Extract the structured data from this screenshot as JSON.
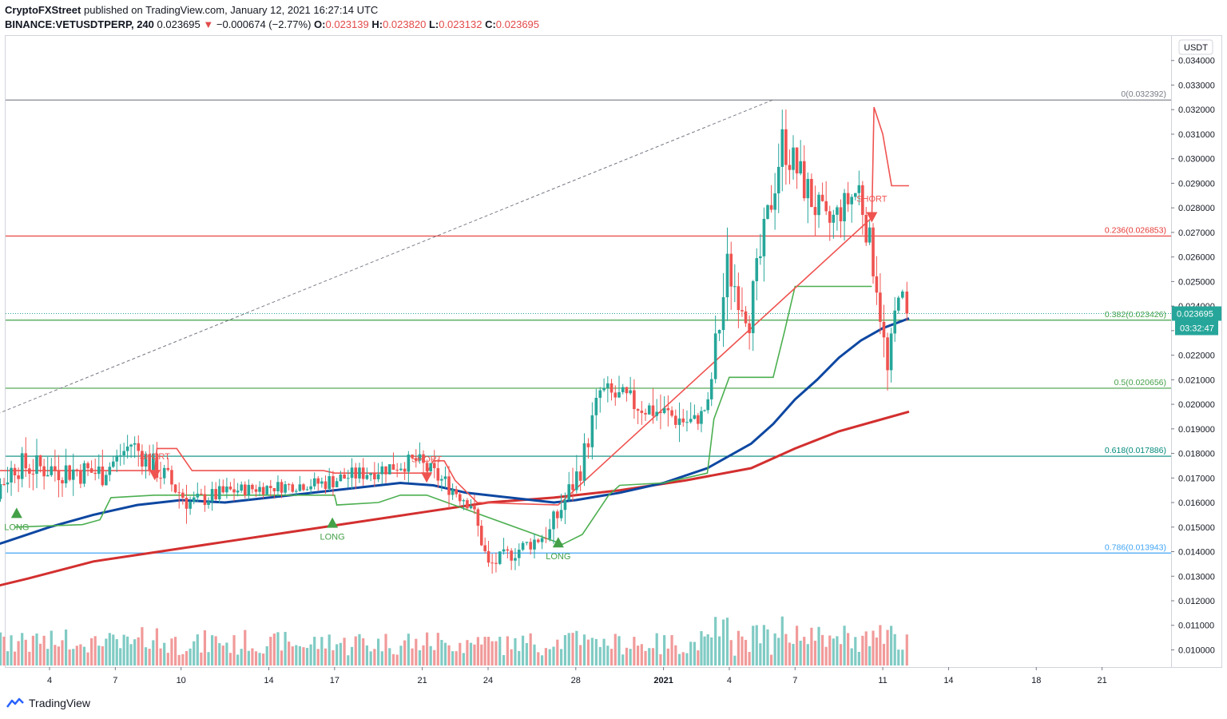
{
  "header": {
    "publisher": "CryptoFXStreet",
    "published_text": "published on TradingView.com, January 12, 2021 16:27:14 UTC",
    "symbol": "BINANCE:VETUSDTPERP",
    "interval": "240",
    "last": "0.023695",
    "change": "−0.000674 (−2.77%)",
    "o_label": "O:",
    "o": "0.023139",
    "h_label": "H:",
    "h": "0.023820",
    "l_label": "L:",
    "l": "0.023132",
    "c_label": "C:",
    "c": "0.023695"
  },
  "footer": {
    "brand": "TradingView",
    "icon": "tradingview-logo-icon"
  },
  "colors": {
    "up": "#26a69a",
    "down": "#ef5350",
    "ema_fast": "#0d47a1",
    "ema_slow": "#d32f2f",
    "trail": "#4caf50",
    "trail_short": "#ef5350",
    "fib_red": "#e53935",
    "fib_green": "#43a047",
    "fib_teal": "#00897b",
    "fib_blue": "#42a5f5",
    "grid_axis": "#787b86"
  },
  "chart_data": {
    "type": "candlestick",
    "currency_label": "USDT",
    "ylim": [
      0.0093,
      0.035
    ],
    "y_ticks": [
      "0.034000",
      "0.033000",
      "0.032000",
      "0.031000",
      "0.030000",
      "0.029000",
      "0.028000",
      "0.027000",
      "0.026000",
      "0.025000",
      "0.024000",
      "0.023000",
      "0.022000",
      "0.021000",
      "0.020000",
      "0.019000",
      "0.018000",
      "0.017000",
      "0.016000",
      "0.015000",
      "0.014000",
      "0.013000",
      "0.012000",
      "0.011000",
      "0.010000"
    ],
    "x_ticks": [
      {
        "label": "4",
        "d": 3
      },
      {
        "label": "7",
        "d": 6
      },
      {
        "label": "10",
        "d": 9
      },
      {
        "label": "14",
        "d": 13
      },
      {
        "label": "17",
        "d": 16
      },
      {
        "label": "21",
        "d": 20
      },
      {
        "label": "24",
        "d": 23
      },
      {
        "label": "28",
        "d": 27
      },
      {
        "label": "2021",
        "d": 31
      },
      {
        "label": "4",
        "d": 34
      },
      {
        "label": "7",
        "d": 37
      },
      {
        "label": "11",
        "d": 41
      },
      {
        "label": "14",
        "d": 44
      },
      {
        "label": "18",
        "d": 48
      },
      {
        "label": "21",
        "d": 51
      }
    ],
    "fib_levels": [
      {
        "ratio": "0",
        "price": 0.032392,
        "label": "0(0.032392)",
        "color": "#787b86"
      },
      {
        "ratio": "0.236",
        "price": 0.026853,
        "label": "0.236(0.026853)",
        "color": "#e53935"
      },
      {
        "ratio": "0.382",
        "price": 0.023426,
        "label": "0.382(0.023426)",
        "color": "#43a047"
      },
      {
        "ratio": "0.5",
        "price": 0.020656,
        "label": "0.5(0.020656)",
        "color": "#43a047"
      },
      {
        "ratio": "0.618",
        "price": 0.017886,
        "label": "0.618(0.017886)",
        "color": "#00897b"
      },
      {
        "ratio": "0.786",
        "price": 0.013943,
        "label": "0.786(0.013943)",
        "color": "#42a5f5"
      }
    ],
    "last_price": "0.023695",
    "countdown": "03:32:47",
    "signals": [
      {
        "type": "LONG",
        "label": "LONG",
        "d": 1.5,
        "price": 0.0156
      },
      {
        "type": "SHORT",
        "label": "SHORT",
        "d": 7.8,
        "price": 0.0171
      },
      {
        "type": "LONG",
        "label": "LONG",
        "d": 15.9,
        "price": 0.0152
      },
      {
        "type": "SHORT",
        "label": "SHORT",
        "d": 20.2,
        "price": 0.017
      },
      {
        "type": "LONG",
        "label": "LONG",
        "d": 26.2,
        "price": 0.0144
      },
      {
        "type": "SHORT",
        "label": "SHORT",
        "d": 40.5,
        "price": 0.0276
      }
    ],
    "ema_fast": [
      [
        -0.8,
        0.0139
      ],
      [
        1,
        0.0144
      ],
      [
        3,
        0.015
      ],
      [
        5,
        0.0155
      ],
      [
        7,
        0.0159
      ],
      [
        9,
        0.0161
      ],
      [
        11,
        0.016
      ],
      [
        13,
        0.0162
      ],
      [
        15,
        0.0164
      ],
      [
        17,
        0.0166
      ],
      [
        19,
        0.0168
      ],
      [
        20.5,
        0.0167
      ],
      [
        22,
        0.0164
      ],
      [
        24,
        0.0162
      ],
      [
        26,
        0.016
      ],
      [
        27,
        0.0161
      ],
      [
        29,
        0.0164
      ],
      [
        31,
        0.0168
      ],
      [
        33,
        0.0174
      ],
      [
        35,
        0.0184
      ],
      [
        36,
        0.0192
      ],
      [
        37,
        0.0202
      ],
      [
        38,
        0.021
      ],
      [
        39,
        0.0219
      ],
      [
        40,
        0.0226
      ],
      [
        41,
        0.0231
      ],
      [
        42.2,
        0.0235
      ]
    ],
    "ema_slow": [
      [
        -0.8,
        0.0123
      ],
      [
        2,
        0.0129
      ],
      [
        5,
        0.0136
      ],
      [
        8,
        0.014
      ],
      [
        11,
        0.0144
      ],
      [
        14,
        0.0148
      ],
      [
        17,
        0.0152
      ],
      [
        20,
        0.0156
      ],
      [
        23,
        0.016
      ],
      [
        26,
        0.0162
      ],
      [
        29,
        0.0165
      ],
      [
        32,
        0.0169
      ],
      [
        35,
        0.0174
      ],
      [
        37,
        0.0182
      ],
      [
        39,
        0.0189
      ],
      [
        41,
        0.0194
      ],
      [
        42.2,
        0.0197
      ]
    ],
    "trail_long": [
      [
        1.4,
        0.015
      ],
      [
        4.5,
        0.0151
      ],
      [
        5.3,
        0.0153
      ],
      [
        5.8,
        0.0162
      ],
      [
        7.8,
        0.0163
      ],
      [
        16,
        0.0163
      ],
      [
        16.1,
        0.0159
      ],
      [
        18,
        0.016
      ],
      [
        19,
        0.0163
      ],
      [
        20.2,
        0.0163
      ],
      [
        26.4,
        0.0143
      ],
      [
        27.3,
        0.0147
      ],
      [
        28.5,
        0.0163
      ],
      [
        29,
        0.0167
      ],
      [
        31,
        0.0168
      ],
      [
        33,
        0.0172
      ],
      [
        33.3,
        0.0194
      ],
      [
        34,
        0.0211
      ],
      [
        36,
        0.0211
      ],
      [
        36.5,
        0.0229
      ],
      [
        37,
        0.0248
      ],
      [
        40.5,
        0.0248
      ]
    ],
    "trail_short": [
      [
        -0.8,
        0.0173
      ],
      [
        1.5,
        0.0173
      ],
      [
        7.8,
        0.0173
      ],
      [
        7.9,
        0.0182
      ],
      [
        8.8,
        0.0182
      ],
      [
        9.5,
        0.0173
      ],
      [
        15.5,
        0.0173
      ],
      [
        16,
        0.0172
      ],
      [
        20.2,
        0.0172
      ],
      [
        20.5,
        0.0177
      ],
      [
        21,
        0.0177
      ],
      [
        21.5,
        0.0169
      ],
      [
        22.5,
        0.016
      ],
      [
        26.2,
        0.0159
      ],
      [
        40.5,
        0.0276
      ],
      [
        40.6,
        0.0321
      ],
      [
        41,
        0.031
      ],
      [
        41.4,
        0.0289
      ],
      [
        42.2,
        0.0289
      ]
    ],
    "fib_anchor_line": [
      [
        -0.8,
        0.0191
      ],
      [
        36,
        0.0324
      ]
    ],
    "candle_segments": [
      {
        "d0": -0.8,
        "d1": 1.5,
        "p0": 0.0147,
        "p1": 0.0175,
        "amp": 0.0012
      },
      {
        "d0": 1.5,
        "d1": 5.5,
        "p0": 0.0175,
        "p1": 0.0172,
        "amp": 0.0013
      },
      {
        "d0": 5.5,
        "d1": 6.8,
        "p0": 0.0172,
        "p1": 0.0184,
        "amp": 0.0008
      },
      {
        "d0": 6.8,
        "d1": 9.5,
        "p0": 0.0184,
        "p1": 0.016,
        "amp": 0.0012
      },
      {
        "d0": 9.5,
        "d1": 11.5,
        "p0": 0.016,
        "p1": 0.0165,
        "amp": 0.0008
      },
      {
        "d0": 11.5,
        "d1": 15.5,
        "p0": 0.0165,
        "p1": 0.0168,
        "amp": 0.0006
      },
      {
        "d0": 15.5,
        "d1": 19.8,
        "p0": 0.0168,
        "p1": 0.0177,
        "amp": 0.0008
      },
      {
        "d0": 19.8,
        "d1": 22.3,
        "p0": 0.0177,
        "p1": 0.016,
        "amp": 0.0009
      },
      {
        "d0": 22.3,
        "d1": 23.1,
        "p0": 0.016,
        "p1": 0.0134,
        "amp": 0.0008
      },
      {
        "d0": 23.1,
        "d1": 25.9,
        "p0": 0.0134,
        "p1": 0.0148,
        "amp": 0.0008
      },
      {
        "d0": 25.9,
        "d1": 27.3,
        "p0": 0.0148,
        "p1": 0.0174,
        "amp": 0.0012
      },
      {
        "d0": 27.3,
        "d1": 28.2,
        "p0": 0.0174,
        "p1": 0.0205,
        "amp": 0.0012
      },
      {
        "d0": 28.2,
        "d1": 32.5,
        "p0": 0.0205,
        "p1": 0.0192,
        "amp": 0.0012
      },
      {
        "d0": 32.5,
        "d1": 33.1,
        "p0": 0.0192,
        "p1": 0.02,
        "amp": 0.0006
      },
      {
        "d0": 33.1,
        "d1": 34.0,
        "p0": 0.02,
        "p1": 0.0255,
        "amp": 0.002
      },
      {
        "d0": 34.0,
        "d1": 35.0,
        "p0": 0.0255,
        "p1": 0.0236,
        "amp": 0.0016
      },
      {
        "d0": 35.0,
        "d1": 36.5,
        "p0": 0.0236,
        "p1": 0.0307,
        "amp": 0.0018
      },
      {
        "d0": 36.5,
        "d1": 38.5,
        "p0": 0.0307,
        "p1": 0.0272,
        "amp": 0.0018
      },
      {
        "d0": 38.5,
        "d1": 40.0,
        "p0": 0.0272,
        "p1": 0.0288,
        "amp": 0.0014
      },
      {
        "d0": 40.0,
        "d1": 40.8,
        "p0": 0.0288,
        "p1": 0.025,
        "amp": 0.0016
      },
      {
        "d0": 40.8,
        "d1": 41.3,
        "p0": 0.025,
        "p1": 0.0212,
        "amp": 0.0014
      },
      {
        "d0": 41.3,
        "d1": 41.8,
        "p0": 0.0212,
        "p1": 0.0248,
        "amp": 0.0012
      },
      {
        "d0": 41.8,
        "d1": 42.2,
        "p0": 0.0248,
        "p1": 0.0237,
        "amp": 0.001
      }
    ]
  }
}
